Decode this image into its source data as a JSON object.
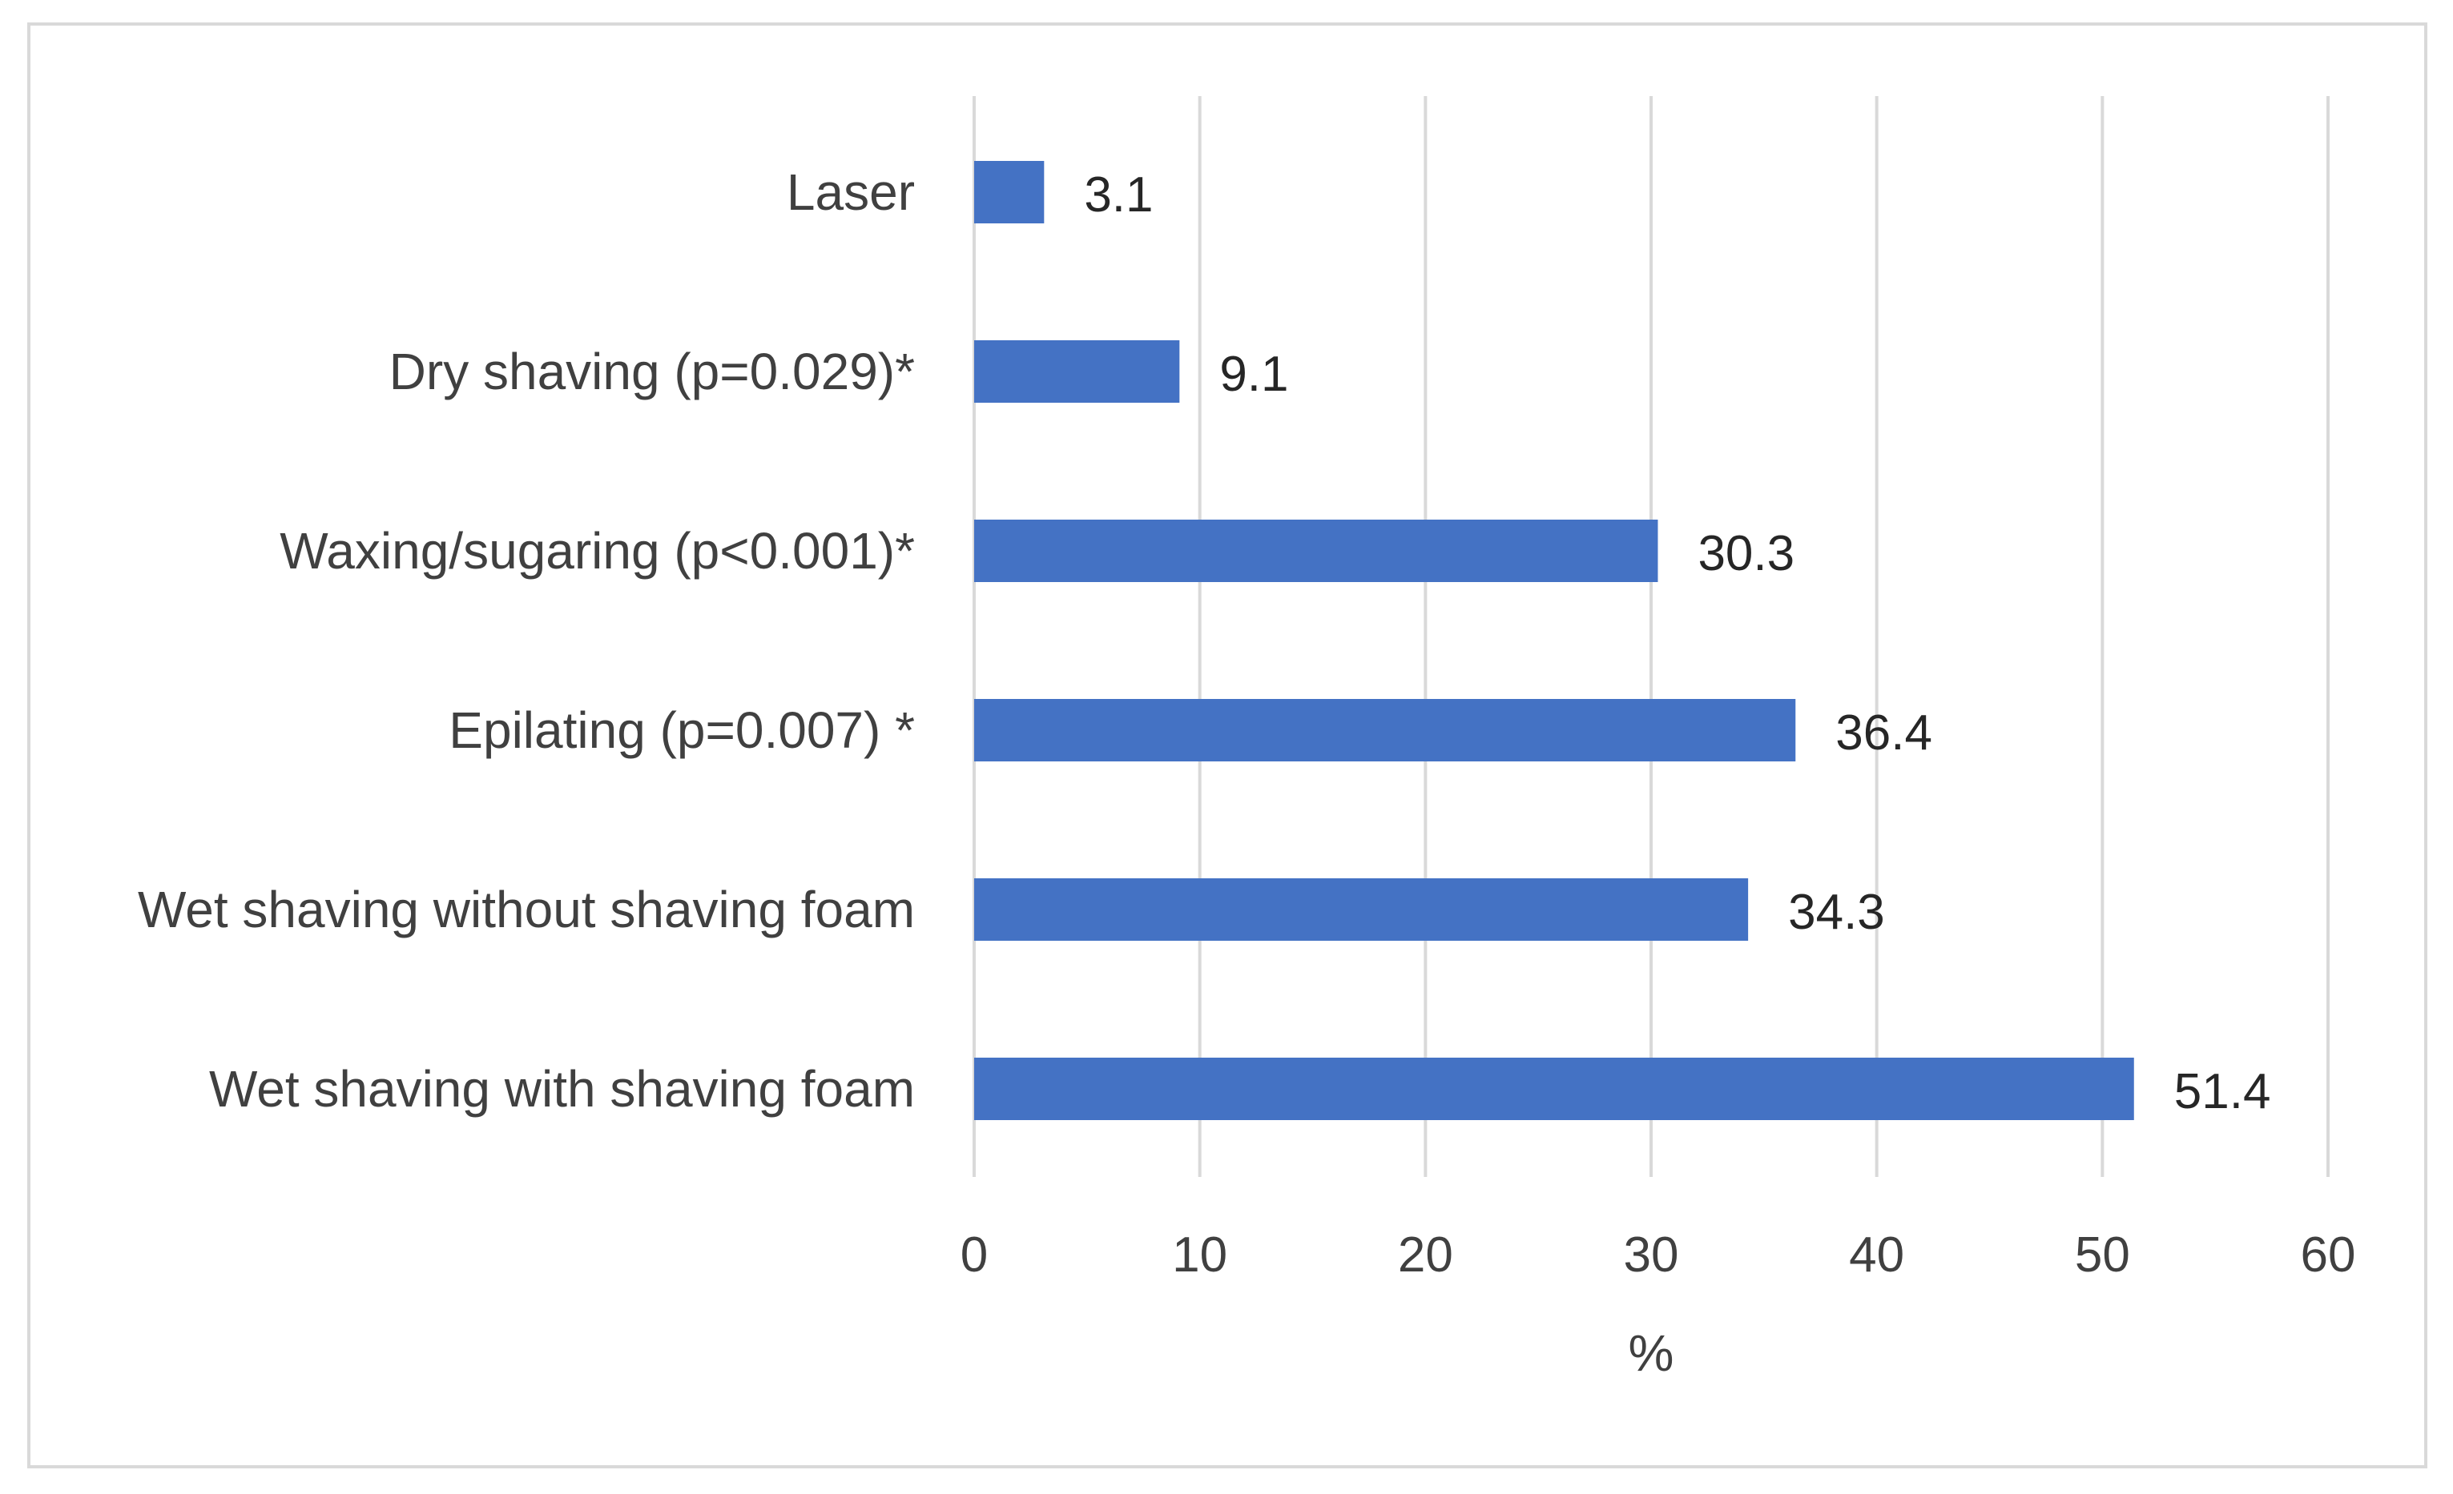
{
  "chart_data": {
    "type": "bar",
    "orientation": "horizontal",
    "categories": [
      "Laser",
      "Dry shaving (p=0.029)*",
      "Waxing/sugaring (p<0.001)*",
      "Epilating (p=0.007) *",
      "Wet shaving without shaving foam",
      "Wet shaving with shaving foam"
    ],
    "values": [
      3.1,
      9.1,
      30.3,
      36.4,
      34.3,
      51.4
    ],
    "data_labels": [
      "3.1",
      "9.1",
      "30.3",
      "36.4",
      "34.3",
      "51.4"
    ],
    "xlabel": "%",
    "ylabel": "",
    "xlim": [
      0,
      60
    ],
    "x_ticks": [
      0,
      10,
      20,
      30,
      40,
      50,
      60
    ],
    "grid": "vertical",
    "legend": "none",
    "bar_color": "#4472c4",
    "grid_color": "#d9d9d9"
  }
}
